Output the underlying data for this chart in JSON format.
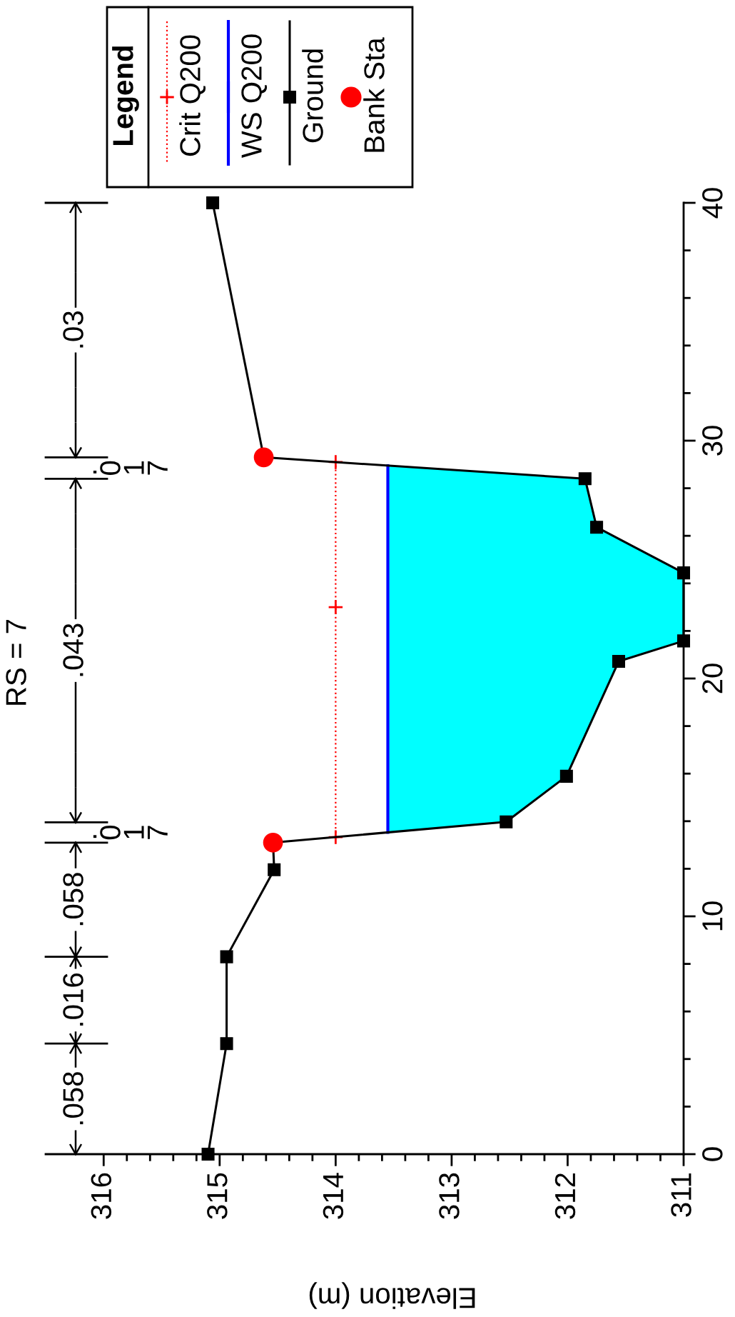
{
  "chart_data": {
    "type": "line",
    "title": "RS = 7",
    "xlabel": "Elevation (m)",
    "legend_title": "Legend",
    "legend": "top left",
    "xlim": [
      316.5,
      311
    ],
    "xticks": [
      316,
      {
        "value": 315.8,
        "label": null
      },
      {
        "value": 315.6,
        "label": null
      },
      {
        "value": 315.4,
        "label": null
      },
      {
        "value": 315.2,
        "label": null
      },
      315,
      {
        "value": 314.8,
        "label": null
      },
      {
        "value": 314.6,
        "label": null
      },
      {
        "value": 314.4,
        "label": null
      },
      {
        "value": 314.2,
        "label": null
      },
      314,
      {
        "value": 313.8,
        "label": null
      },
      {
        "value": 313.6,
        "label": null
      },
      {
        "value": 313.4,
        "label": null
      },
      {
        "value": 313.2,
        "label": null
      },
      313,
      {
        "value": 312.8,
        "label": null
      },
      {
        "value": 312.6,
        "label": null
      },
      {
        "value": 312.4,
        "label": null
      },
      {
        "value": 312.2,
        "label": null
      },
      312,
      {
        "value": 311.8,
        "label": null
      },
      {
        "value": 311.6,
        "label": null
      },
      {
        "value": 311.4,
        "label": null
      },
      {
        "value": 311.2,
        "label": null
      },
      311
    ],
    "ylim": [
      0,
      40
    ],
    "yticks": [
      0,
      {
        "value": 2,
        "label": null
      },
      {
        "value": 4,
        "label": null
      },
      {
        "value": 6,
        "label": null
      },
      {
        "value": 8,
        "label": null
      },
      10,
      {
        "value": 12,
        "label": null
      },
      {
        "value": 14,
        "label": null
      },
      {
        "value": 16,
        "label": null
      },
      {
        "value": 18,
        "label": null
      },
      20,
      {
        "value": 22,
        "label": null
      },
      {
        "value": 24,
        "label": null
      },
      {
        "value": 26,
        "label": null
      },
      {
        "value": 28,
        "label": null
      },
      30,
      {
        "value": 32,
        "label": null
      },
      {
        "value": 34,
        "label": null
      },
      {
        "value": 36,
        "label": null
      },
      {
        "value": 38,
        "label": null
      },
      40
    ],
    "series": [
      {
        "type": "area",
        "color": "#00ffff",
        "x": [
          313.55,
          312.53,
          312.01,
          311.56,
          311.0,
          311.0,
          311.75,
          311.85,
          313.55
        ],
        "values": [
          13.53,
          13.97,
          15.89,
          20.72,
          21.58,
          24.44,
          26.36,
          28.4,
          28.95
        ]
      },
      {
        "name": "Crit Q200",
        "type": "line",
        "color": "#ff0000",
        "line_style": "dotted",
        "marker": "cross",
        "x": [
          314.0,
          314.0,
          314.0
        ],
        "values": [
          13.33,
          23.0,
          29.1
        ]
      },
      {
        "name": "WS Q200",
        "type": "line",
        "color": "#0000ff",
        "line_style": "solid",
        "x": [
          313.55,
          313.55
        ],
        "values": [
          13.53,
          28.95
        ]
      },
      {
        "name": "Ground",
        "color": "#000000",
        "line_style": "solid",
        "marker": "square",
        "x": [
          315.1,
          314.94,
          314.94,
          314.53,
          314.54,
          312.53,
          312.01,
          311.56,
          311.0,
          311.0,
          311.75,
          311.85,
          314.62,
          315.06
        ],
        "values": [
          0,
          4.65,
          8.3,
          11.96,
          13.1,
          13.97,
          15.89,
          20.72,
          21.58,
          24.44,
          26.36,
          28.4,
          29.3,
          40
        ]
      },
      {
        "name": "Bank Sta",
        "type": "scatter",
        "color": "#ff0000",
        "marker": "circle",
        "x": [
          314.54,
          314.62
        ],
        "values": [
          13.1,
          29.3
        ]
      }
    ],
    "ref_lines": [
      {
        "axis": "y",
        "value": 4.65
      },
      {
        "axis": "y",
        "value": 8.3
      },
      {
        "axis": "y",
        "value": 13.1
      },
      {
        "axis": "y",
        "value": 13.95
      },
      {
        "axis": "y",
        "value": 28.4
      },
      {
        "axis": "y",
        "value": 29.3
      },
      {
        "axis": "y",
        "value": 40
      }
    ],
    "annotations": [
      ".058",
      ".016",
      ".058",
      ".017",
      ".043",
      ".017",
      ".03"
    ]
  }
}
